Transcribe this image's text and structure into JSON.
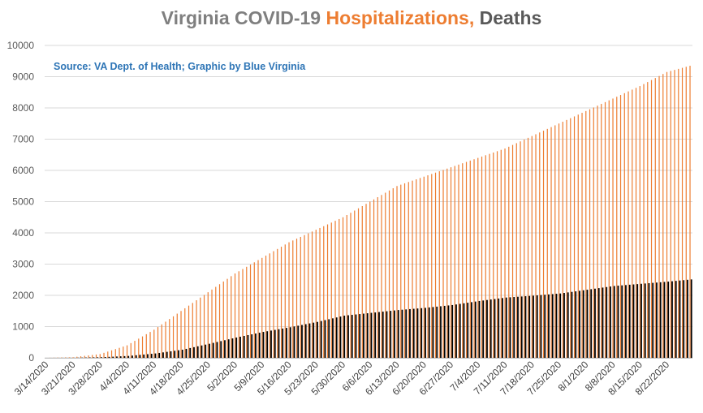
{
  "chart_data": {
    "type": "bar",
    "title_parts": [
      "Virginia COVID-19 ",
      "Hospitalizations,",
      " Deaths"
    ],
    "annotation": "Source: VA Dept. of Health; Graphic by Blue Virginia",
    "ylim": [
      0,
      10000
    ],
    "yticks": [
      0,
      1000,
      2000,
      3000,
      4000,
      5000,
      6000,
      7000,
      8000,
      9000,
      10000
    ],
    "xtick_labels": [
      "3/14/2020",
      "3/21/2020",
      "3/28/2020",
      "4/4/2020",
      "4/11/2020",
      "4/18/2020",
      "4/25/2020",
      "5/2/2020",
      "5/9/2020",
      "5/16/2020",
      "5/23/2020",
      "5/30/2020",
      "6/6/2020",
      "6/13/2020",
      "6/20/2020",
      "6/27/2020",
      "7/4/2020",
      "7/11/2020",
      "7/18/2020",
      "7/25/2020",
      "8/1/2020",
      "8/8/2020",
      "8/15/2020",
      "8/22/2020"
    ],
    "date_range": [
      "3/14/2020",
      "8/28/2020"
    ],
    "grid": true,
    "colors": {
      "hospitalizations": "#ed7d31",
      "deaths": "#000000",
      "title_gray": "#7f7f7f",
      "title_dark": "#595959",
      "source": "#2e75b6",
      "grid": "#d9d9d9"
    },
    "series": [
      {
        "name": "Hospitalizations",
        "anchors": [
          [
            "3/14/2020",
            0
          ],
          [
            "3/21/2020",
            20
          ],
          [
            "3/28/2020",
            120
          ],
          [
            "4/4/2020",
            400
          ],
          [
            "4/11/2020",
            900
          ],
          [
            "4/18/2020",
            1500
          ],
          [
            "4/25/2020",
            2100
          ],
          [
            "5/2/2020",
            2700
          ],
          [
            "5/9/2020",
            3200
          ],
          [
            "5/16/2020",
            3700
          ],
          [
            "5/23/2020",
            4100
          ],
          [
            "5/30/2020",
            4500
          ],
          [
            "6/6/2020",
            5000
          ],
          [
            "6/13/2020",
            5500
          ],
          [
            "6/20/2020",
            5800
          ],
          [
            "6/27/2020",
            6100
          ],
          [
            "7/4/2020",
            6400
          ],
          [
            "7/11/2020",
            6700
          ],
          [
            "7/18/2020",
            7100
          ],
          [
            "7/25/2020",
            7500
          ],
          [
            "8/1/2020",
            7900
          ],
          [
            "8/8/2020",
            8300
          ],
          [
            "8/15/2020",
            8700
          ],
          [
            "8/22/2020",
            9150
          ],
          [
            "8/28/2020",
            9350
          ]
        ]
      },
      {
        "name": "Deaths",
        "anchors": [
          [
            "3/14/2020",
            0
          ],
          [
            "3/21/2020",
            3
          ],
          [
            "3/28/2020",
            20
          ],
          [
            "4/4/2020",
            60
          ],
          [
            "4/11/2020",
            140
          ],
          [
            "4/18/2020",
            260
          ],
          [
            "4/25/2020",
            450
          ],
          [
            "5/2/2020",
            650
          ],
          [
            "5/9/2020",
            830
          ],
          [
            "5/16/2020",
            980
          ],
          [
            "5/23/2020",
            1150
          ],
          [
            "5/30/2020",
            1350
          ],
          [
            "6/6/2020",
            1440
          ],
          [
            "6/13/2020",
            1530
          ],
          [
            "6/20/2020",
            1600
          ],
          [
            "6/27/2020",
            1690
          ],
          [
            "7/4/2020",
            1820
          ],
          [
            "7/11/2020",
            1930
          ],
          [
            "7/18/2020",
            1990
          ],
          [
            "7/25/2020",
            2060
          ],
          [
            "8/1/2020",
            2180
          ],
          [
            "8/8/2020",
            2300
          ],
          [
            "8/15/2020",
            2370
          ],
          [
            "8/22/2020",
            2440
          ],
          [
            "8/28/2020",
            2510
          ]
        ]
      }
    ]
  }
}
